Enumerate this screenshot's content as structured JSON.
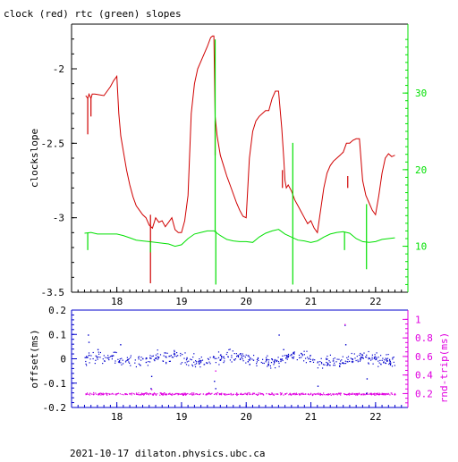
{
  "title": "clock (red) rtc (green) slopes",
  "footer": "2021-10-17  dilaton.physics.ubc.ca",
  "colors": {
    "clock": "#d00000",
    "rtc": "#00e000",
    "offset": "#0000cc",
    "rndtrip": "#e000e0",
    "axis": "#000000"
  },
  "chart_data": [
    {
      "type": "line",
      "title": "clock (red) rtc (green) slopes",
      "xlabel": "",
      "ylabel": "clockslope",
      "y2label": "",
      "xlim": [
        17.3,
        22.5
      ],
      "ylim": [
        -3.5,
        -1.7
      ],
      "y2lim": [
        4,
        39
      ],
      "x_ticks": [
        18,
        19,
        20,
        21,
        22
      ],
      "y_ticks": [
        -2,
        -2.5,
        -3,
        -3.5
      ],
      "y2_ticks": [
        10,
        20,
        30
      ],
      "series": [
        {
          "key": "clock",
          "axis": "left",
          "x": [
            17.52,
            17.55,
            17.57,
            17.6,
            17.62,
            17.64,
            17.66,
            17.8,
            17.9,
            17.95,
            18.0,
            18.03,
            18.06,
            18.1,
            18.15,
            18.2,
            18.25,
            18.3,
            18.35,
            18.4,
            18.45,
            18.5,
            18.55,
            18.6,
            18.65,
            18.7,
            18.75,
            18.8,
            18.85,
            18.9,
            18.95,
            19.0,
            19.05,
            19.1,
            19.15,
            19.2,
            19.25,
            19.3,
            19.35,
            19.4,
            19.45,
            19.48,
            19.5,
            19.52,
            19.55,
            19.6,
            19.65,
            19.7,
            19.75,
            19.8,
            19.85,
            19.9,
            19.95,
            20.0,
            20.05,
            20.1,
            20.15,
            20.2,
            20.25,
            20.3,
            20.35,
            20.4,
            20.45,
            20.5,
            20.55,
            20.58,
            20.6,
            20.62,
            20.65,
            20.7,
            20.75,
            20.8,
            20.85,
            20.9,
            20.95,
            21.0,
            21.05,
            21.1,
            21.15,
            21.2,
            21.25,
            21.3,
            21.35,
            21.4,
            21.45,
            21.5,
            21.55,
            21.6,
            21.65,
            21.7,
            21.75,
            21.8,
            21.85,
            21.9,
            21.95,
            22.0,
            22.05,
            22.1,
            22.15,
            22.2,
            22.25,
            22.3
          ],
          "y": [
            -2.18,
            -2.2,
            -2.17,
            -2.2,
            -2.17,
            -2.17,
            -2.17,
            -2.18,
            -2.12,
            -2.08,
            -2.05,
            -2.3,
            -2.45,
            -2.55,
            -2.68,
            -2.78,
            -2.86,
            -2.92,
            -2.95,
            -2.98,
            -3.0,
            -3.05,
            -3.07,
            -3.0,
            -3.03,
            -3.02,
            -3.06,
            -3.03,
            -3.0,
            -3.08,
            -3.1,
            -3.1,
            -3.02,
            -2.85,
            -2.3,
            -2.1,
            -2.0,
            -1.95,
            -1.9,
            -1.85,
            -1.79,
            -1.78,
            -1.78,
            -2.32,
            -2.45,
            -2.58,
            -2.65,
            -2.72,
            -2.78,
            -2.84,
            -2.9,
            -2.95,
            -2.99,
            -3.0,
            -2.6,
            -2.42,
            -2.35,
            -2.32,
            -2.3,
            -2.28,
            -2.28,
            -2.2,
            -2.15,
            -2.15,
            -2.4,
            -2.6,
            -2.75,
            -2.8,
            -2.78,
            -2.82,
            -2.88,
            -2.92,
            -2.96,
            -3.0,
            -3.04,
            -3.02,
            -3.07,
            -3.1,
            -2.95,
            -2.8,
            -2.7,
            -2.65,
            -2.62,
            -2.6,
            -2.58,
            -2.56,
            -2.5,
            -2.5,
            -2.48,
            -2.47,
            -2.47,
            -2.75,
            -2.85,
            -2.9,
            -2.95,
            -2.98,
            -2.85,
            -2.7,
            -2.6,
            -2.57,
            -2.59,
            -2.58
          ]
        },
        {
          "key": "rtc",
          "axis": "right",
          "x": [
            17.5,
            17.6,
            17.7,
            17.8,
            17.9,
            18.0,
            18.1,
            18.2,
            18.3,
            18.4,
            18.5,
            18.6,
            18.7,
            18.8,
            18.9,
            19.0,
            19.1,
            19.2,
            19.3,
            19.4,
            19.5,
            19.6,
            19.7,
            19.8,
            19.9,
            20.0,
            20.1,
            20.2,
            20.3,
            20.4,
            20.5,
            20.6,
            20.7,
            20.8,
            20.9,
            21.0,
            21.1,
            21.2,
            21.3,
            21.4,
            21.5,
            21.6,
            21.7,
            21.8,
            21.9,
            22.0,
            22.1,
            22.2,
            22.3
          ],
          "y": [
            11.7,
            11.8,
            11.6,
            11.6,
            11.6,
            11.6,
            11.4,
            11.1,
            10.8,
            10.7,
            10.6,
            10.5,
            10.4,
            10.3,
            10.0,
            10.2,
            11.0,
            11.6,
            11.8,
            12.0,
            12.0,
            11.4,
            10.9,
            10.7,
            10.6,
            10.6,
            10.5,
            11.2,
            11.7,
            12.0,
            12.2,
            11.6,
            11.2,
            10.8,
            10.7,
            10.5,
            10.7,
            11.2,
            11.6,
            11.8,
            11.9,
            11.7,
            11.0,
            10.6,
            10.5,
            10.6,
            10.9,
            11.0,
            11.1
          ]
        }
      ],
      "spikes": [
        {
          "series": "clock",
          "x": 17.55,
          "y1": -2.2,
          "y2": -2.44
        },
        {
          "series": "clock",
          "x": 17.6,
          "y1": -2.2,
          "y2": -2.32
        },
        {
          "series": "clock",
          "x": 18.52,
          "y1": -2.98,
          "y2": -3.44
        },
        {
          "series": "clock",
          "x": 19.52,
          "y1": -2.35,
          "y2": -2.58
        },
        {
          "series": "clock",
          "x": 20.56,
          "y1": -2.68,
          "y2": -2.8
        },
        {
          "series": "clock",
          "x": 21.57,
          "y1": -2.72,
          "y2": -2.8
        },
        {
          "series": "rtc",
          "x": 17.55,
          "y1": 11.7,
          "y2": 9.5
        },
        {
          "series": "rtc",
          "x": 18.52,
          "y1": 10.6,
          "y2": 9.2
        },
        {
          "series": "rtc",
          "x": 19.52,
          "y1": 12.0,
          "y2": 37.0
        },
        {
          "series": "rtc",
          "x": 19.53,
          "y1": 12.0,
          "y2": 5.0
        },
        {
          "series": "rtc",
          "x": 20.72,
          "y1": 11.2,
          "y2": 23.5
        },
        {
          "series": "rtc",
          "x": 20.72,
          "y1": 11.2,
          "y2": 5.0
        },
        {
          "series": "rtc",
          "x": 21.52,
          "y1": 11.9,
          "y2": 9.5
        },
        {
          "series": "rtc",
          "x": 21.86,
          "y1": 10.5,
          "y2": 15.5
        },
        {
          "series": "rtc",
          "x": 21.86,
          "y1": 10.5,
          "y2": 7.0
        }
      ]
    },
    {
      "type": "scatter",
      "xlabel": "",
      "ylabel": "offset(ms)",
      "y2label": "rnd-trip(ms)",
      "xlim": [
        17.3,
        22.5
      ],
      "ylim": [
        -0.2,
        0.2
      ],
      "y2lim": [
        0.05,
        1.1
      ],
      "x_ticks": [
        18,
        19,
        20,
        21,
        22
      ],
      "y_ticks": [
        0.2,
        0.1,
        0,
        -0.1,
        -0.2
      ],
      "y2_ticks": [
        1,
        0.8,
        0.6,
        0.4,
        0.2
      ],
      "series": [
        {
          "key": "offset",
          "axis": "left",
          "x_range": [
            17.5,
            22.3
          ],
          "center": 0.0,
          "spread": 0.025,
          "count": 520
        },
        {
          "key": "rndtrip",
          "axis": "right",
          "x_range": [
            17.5,
            22.3
          ],
          "center": 0.2,
          "spread": 0.012,
          "count": 520
        }
      ],
      "outliers": [
        {
          "series": "offset",
          "x": 17.55,
          "y": 0.1
        },
        {
          "series": "offset",
          "x": 17.56,
          "y": 0.07
        },
        {
          "series": "offset",
          "x": 17.7,
          "y": 0.04
        },
        {
          "series": "offset",
          "x": 18.05,
          "y": 0.06
        },
        {
          "series": "offset",
          "x": 18.52,
          "y": -0.12
        },
        {
          "series": "offset",
          "x": 18.53,
          "y": -0.07
        },
        {
          "series": "offset",
          "x": 19.5,
          "y": -0.09
        },
        {
          "series": "offset",
          "x": 19.52,
          "y": -0.12
        },
        {
          "series": "offset",
          "x": 20.5,
          "y": 0.1
        },
        {
          "series": "offset",
          "x": 20.57,
          "y": 0.04
        },
        {
          "series": "offset",
          "x": 21.1,
          "y": -0.11
        },
        {
          "series": "offset",
          "x": 21.52,
          "y": 0.14
        },
        {
          "series": "offset",
          "x": 21.53,
          "y": 0.06
        },
        {
          "series": "offset",
          "x": 21.85,
          "y": -0.14
        },
        {
          "series": "offset",
          "x": 21.86,
          "y": -0.08
        },
        {
          "series": "rndtrip",
          "x": 21.52,
          "y": 0.95
        },
        {
          "series": "rndtrip",
          "x": 19.52,
          "y": 0.45
        },
        {
          "series": "rndtrip",
          "x": 18.53,
          "y": 0.25
        }
      ]
    }
  ]
}
